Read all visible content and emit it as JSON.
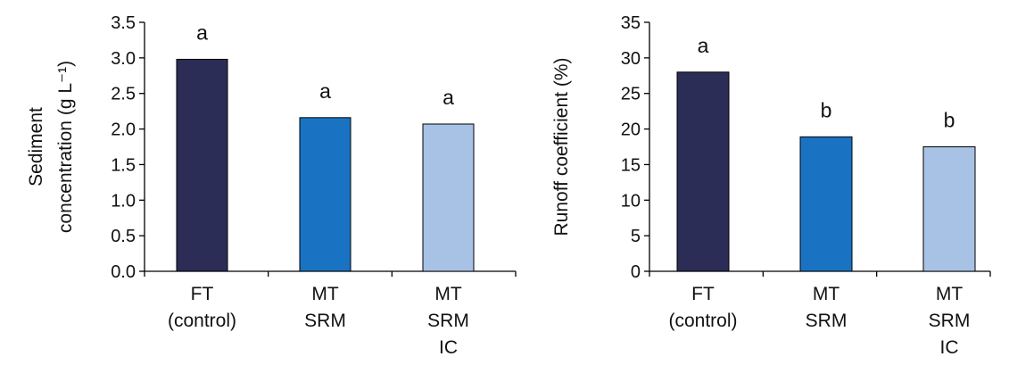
{
  "chart_data": [
    {
      "type": "bar",
      "ylabel_lines": [
        "Sediment",
        "concentration (g L⁻¹)"
      ],
      "categories": [
        [
          "FT",
          "(control)"
        ],
        [
          "MT",
          "SRM"
        ],
        [
          "MT",
          "SRM",
          "IC"
        ]
      ],
      "values": [
        2.98,
        2.16,
        2.07
      ],
      "significance": [
        "a",
        "a",
        "a"
      ],
      "ylim": [
        0,
        3.5
      ],
      "yticks": [
        "0.0",
        "0.5",
        "1.0",
        "1.5",
        "2.0",
        "2.5",
        "3.0",
        "3.5"
      ],
      "colors": [
        "#2b2d56",
        "#1a73c2",
        "#a8c2e6"
      ],
      "grid": false,
      "legend": "none"
    },
    {
      "type": "bar",
      "ylabel_lines": [
        "Runoff coefficient (%)"
      ],
      "categories": [
        [
          "FT",
          "(control)"
        ],
        [
          "MT",
          "SRM"
        ],
        [
          "MT",
          "SRM",
          "IC"
        ]
      ],
      "values": [
        28.0,
        18.9,
        17.5
      ],
      "significance": [
        "a",
        "b",
        "b"
      ],
      "ylim": [
        0,
        35
      ],
      "yticks": [
        "0",
        "5",
        "10",
        "15",
        "20",
        "25",
        "30",
        "35"
      ],
      "colors": [
        "#2b2d56",
        "#1a73c2",
        "#a8c2e6"
      ],
      "grid": false,
      "legend": "none"
    }
  ]
}
